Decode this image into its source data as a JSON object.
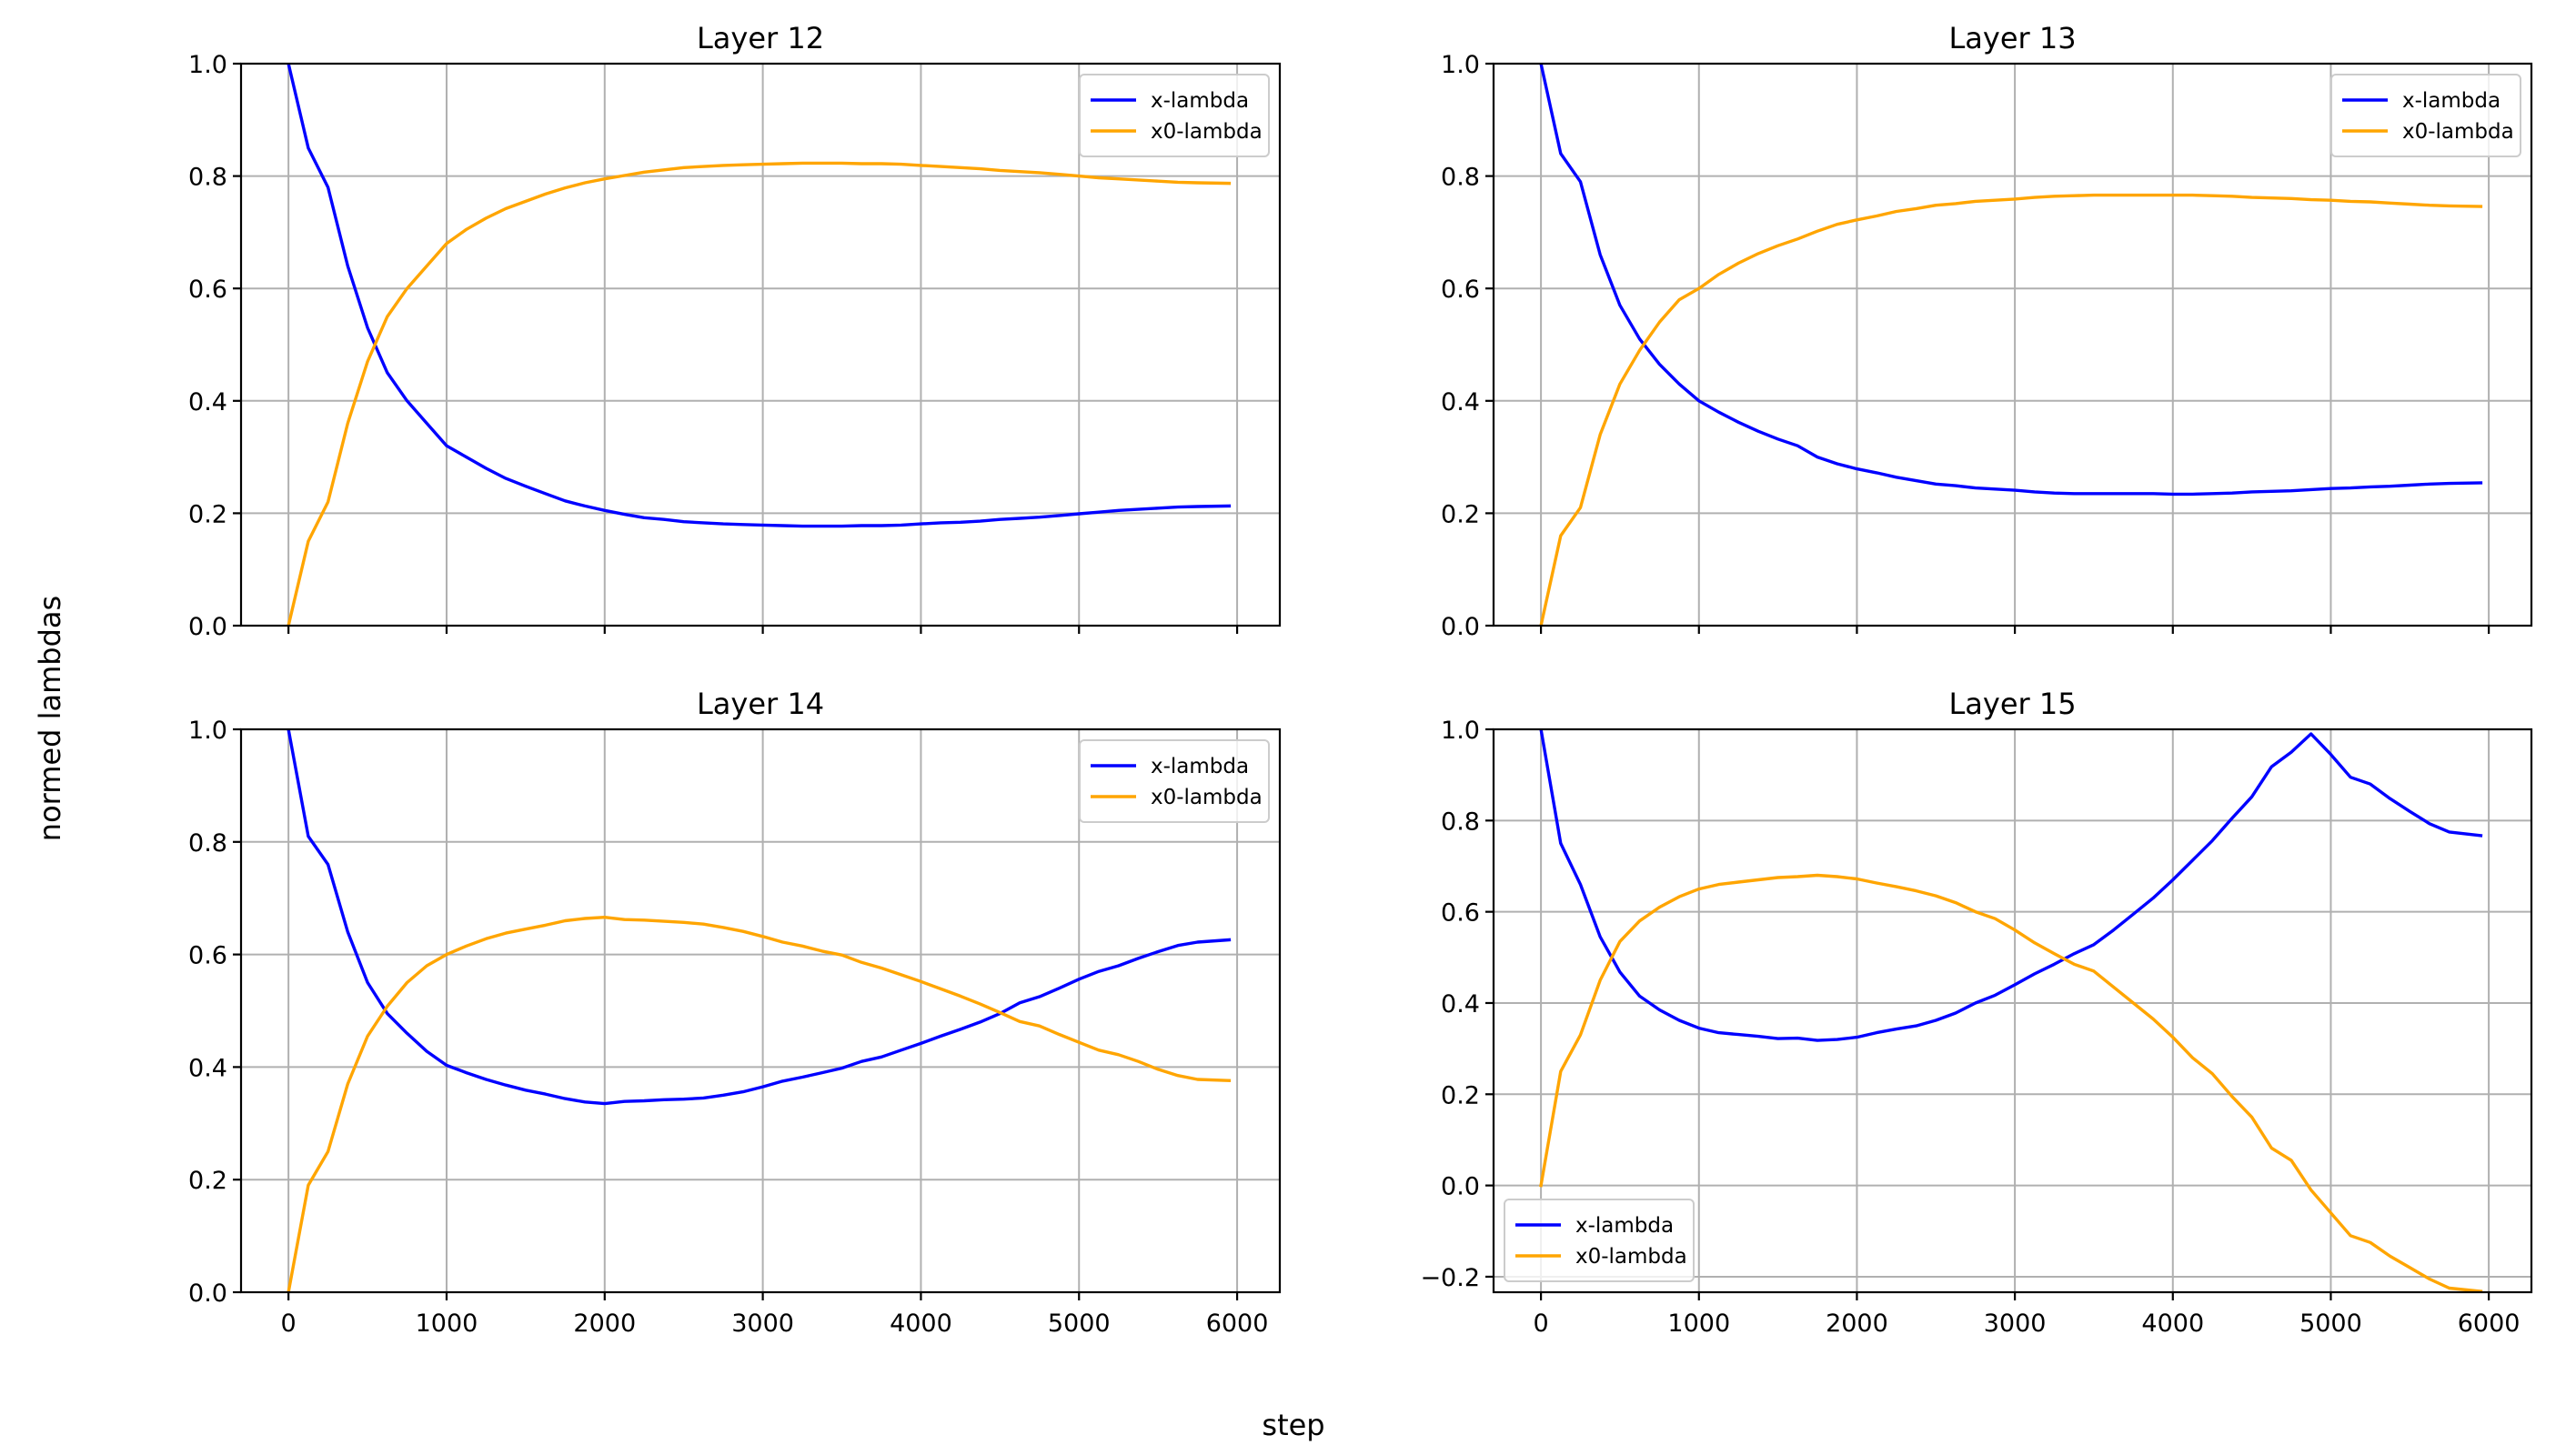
{
  "figure": {
    "xlabel": "step",
    "ylabel": "normed lambdas"
  },
  "colors": {
    "x_lambda": "#0000ff",
    "x0_lambda": "#ffa500",
    "grid": "#b0b0b0"
  },
  "chart_data": [
    {
      "type": "line",
      "title": "Layer 12",
      "xlabel": "",
      "ylabel": "",
      "xlim": [
        -300,
        6270
      ],
      "ylim": [
        0.0,
        1.0
      ],
      "xticks": [
        0,
        1000,
        2000,
        3000,
        4000,
        5000,
        6000
      ],
      "xtick_labels": [],
      "yticks": [
        0.0,
        0.2,
        0.4,
        0.6,
        0.8,
        1.0
      ],
      "ytick_labels": [
        "0.0",
        "0.2",
        "0.4",
        "0.6",
        "0.8",
        "1.0"
      ],
      "grid": true,
      "legend": "top-right",
      "x": [
        0,
        125,
        250,
        375,
        500,
        625,
        750,
        875,
        1000,
        1125,
        1250,
        1375,
        1500,
        1625,
        1750,
        1875,
        2000,
        2125,
        2250,
        2375,
        2500,
        2625,
        2750,
        2875,
        3000,
        3125,
        3250,
        3375,
        3500,
        3625,
        3750,
        3875,
        4000,
        4125,
        4250,
        4375,
        4500,
        4625,
        4750,
        4875,
        5000,
        5125,
        5250,
        5375,
        5500,
        5625,
        5750,
        5950
      ],
      "series": [
        {
          "name": "x-lambda",
          "values": [
            1.0,
            0.85,
            0.78,
            0.64,
            0.53,
            0.45,
            0.4,
            0.36,
            0.32,
            0.3,
            0.28,
            0.262,
            0.248,
            0.235,
            0.222,
            0.213,
            0.205,
            0.198,
            0.192,
            0.189,
            0.185,
            0.183,
            0.181,
            0.18,
            0.179,
            0.178,
            0.177,
            0.177,
            0.177,
            0.178,
            0.178,
            0.179,
            0.181,
            0.183,
            0.184,
            0.186,
            0.189,
            0.191,
            0.193,
            0.196,
            0.199,
            0.202,
            0.205,
            0.207,
            0.209,
            0.211,
            0.212,
            0.213
          ]
        },
        {
          "name": "x0-lambda",
          "values": [
            0.0,
            0.15,
            0.22,
            0.36,
            0.47,
            0.55,
            0.6,
            0.64,
            0.68,
            0.705,
            0.725,
            0.742,
            0.755,
            0.768,
            0.779,
            0.788,
            0.795,
            0.801,
            0.807,
            0.811,
            0.815,
            0.817,
            0.819,
            0.82,
            0.821,
            0.822,
            0.823,
            0.823,
            0.823,
            0.822,
            0.822,
            0.821,
            0.819,
            0.817,
            0.815,
            0.813,
            0.81,
            0.808,
            0.806,
            0.803,
            0.8,
            0.797,
            0.795,
            0.793,
            0.791,
            0.789,
            0.788,
            0.787
          ]
        }
      ]
    },
    {
      "type": "line",
      "title": "Layer 13",
      "xlabel": "",
      "ylabel": "",
      "xlim": [
        -300,
        6270
      ],
      "ylim": [
        0.0,
        1.0
      ],
      "xticks": [
        0,
        1000,
        2000,
        3000,
        4000,
        5000,
        6000
      ],
      "xtick_labels": [],
      "yticks": [
        0.0,
        0.2,
        0.4,
        0.6,
        0.8,
        1.0
      ],
      "ytick_labels": [
        "0.0",
        "0.2",
        "0.4",
        "0.6",
        "0.8",
        "1.0"
      ],
      "grid": true,
      "legend": "top-right",
      "x": [
        0,
        125,
        250,
        375,
        500,
        625,
        750,
        875,
        1000,
        1125,
        1250,
        1375,
        1500,
        1625,
        1750,
        1875,
        2000,
        2125,
        2250,
        2375,
        2500,
        2625,
        2750,
        2875,
        3000,
        3125,
        3250,
        3375,
        3500,
        3625,
        3750,
        3875,
        4000,
        4125,
        4250,
        4375,
        4500,
        4625,
        4750,
        4875,
        5000,
        5125,
        5250,
        5375,
        5500,
        5625,
        5750,
        5950
      ],
      "series": [
        {
          "name": "x-lambda",
          "values": [
            1.0,
            0.84,
            0.79,
            0.66,
            0.57,
            0.51,
            0.465,
            0.43,
            0.4,
            0.38,
            0.362,
            0.346,
            0.332,
            0.32,
            0.3,
            0.288,
            0.279,
            0.272,
            0.264,
            0.258,
            0.252,
            0.249,
            0.245,
            0.243,
            0.241,
            0.238,
            0.236,
            0.235,
            0.235,
            0.235,
            0.235,
            0.235,
            0.234,
            0.234,
            0.235,
            0.236,
            0.238,
            0.239,
            0.24,
            0.242,
            0.244,
            0.245,
            0.247,
            0.248,
            0.25,
            0.252,
            0.253,
            0.254
          ]
        },
        {
          "name": "x0-lambda",
          "values": [
            0.0,
            0.16,
            0.21,
            0.34,
            0.43,
            0.49,
            0.54,
            0.58,
            0.6,
            0.625,
            0.645,
            0.662,
            0.676,
            0.688,
            0.702,
            0.714,
            0.722,
            0.729,
            0.737,
            0.742,
            0.748,
            0.751,
            0.755,
            0.757,
            0.759,
            0.762,
            0.764,
            0.765,
            0.766,
            0.766,
            0.766,
            0.766,
            0.766,
            0.766,
            0.765,
            0.764,
            0.762,
            0.761,
            0.76,
            0.758,
            0.757,
            0.755,
            0.754,
            0.752,
            0.75,
            0.748,
            0.747,
            0.746
          ]
        }
      ]
    },
    {
      "type": "line",
      "title": "Layer 14",
      "xlabel": "",
      "ylabel": "",
      "xlim": [
        -300,
        6270
      ],
      "ylim": [
        0.0,
        1.0
      ],
      "xticks": [
        0,
        1000,
        2000,
        3000,
        4000,
        5000,
        6000
      ],
      "xtick_labels": [
        "0",
        "1000",
        "2000",
        "3000",
        "4000",
        "5000",
        "6000"
      ],
      "yticks": [
        0.0,
        0.2,
        0.4,
        0.6,
        0.8,
        1.0
      ],
      "ytick_labels": [
        "0.0",
        "0.2",
        "0.4",
        "0.6",
        "0.8",
        "1.0"
      ],
      "grid": true,
      "legend": "top-right",
      "x": [
        0,
        125,
        250,
        375,
        500,
        625,
        750,
        875,
        1000,
        1125,
        1250,
        1375,
        1500,
        1625,
        1750,
        1875,
        2000,
        2125,
        2250,
        2375,
        2500,
        2625,
        2750,
        2875,
        3000,
        3125,
        3250,
        3375,
        3500,
        3625,
        3750,
        3875,
        4000,
        4125,
        4250,
        4375,
        4500,
        4625,
        4750,
        4875,
        5000,
        5125,
        5250,
        5375,
        5500,
        5625,
        5750,
        5950
      ],
      "series": [
        {
          "name": "x-lambda",
          "values": [
            1.0,
            0.81,
            0.76,
            0.64,
            0.55,
            0.495,
            0.46,
            0.428,
            0.403,
            0.39,
            0.378,
            0.368,
            0.359,
            0.352,
            0.344,
            0.338,
            0.335,
            0.339,
            0.34,
            0.342,
            0.343,
            0.345,
            0.35,
            0.356,
            0.365,
            0.375,
            0.382,
            0.39,
            0.398,
            0.41,
            0.418,
            0.43,
            0.442,
            0.455,
            0.467,
            0.48,
            0.495,
            0.514,
            0.525,
            0.54,
            0.556,
            0.57,
            0.58,
            0.593,
            0.605,
            0.616,
            0.622,
            0.626
          ]
        },
        {
          "name": "x0-lambda",
          "values": [
            0.0,
            0.19,
            0.25,
            0.37,
            0.455,
            0.508,
            0.55,
            0.58,
            0.6,
            0.615,
            0.628,
            0.638,
            0.645,
            0.652,
            0.66,
            0.664,
            0.666,
            0.662,
            0.661,
            0.659,
            0.657,
            0.654,
            0.648,
            0.641,
            0.632,
            0.622,
            0.615,
            0.606,
            0.599,
            0.586,
            0.576,
            0.564,
            0.552,
            0.539,
            0.526,
            0.512,
            0.497,
            0.481,
            0.473,
            0.458,
            0.444,
            0.43,
            0.422,
            0.41,
            0.396,
            0.385,
            0.378,
            0.376
          ]
        }
      ]
    },
    {
      "type": "line",
      "title": "Layer 15",
      "xlabel": "",
      "ylabel": "",
      "xlim": [
        -300,
        6270
      ],
      "ylim": [
        -0.234,
        1.0
      ],
      "xticks": [
        0,
        1000,
        2000,
        3000,
        4000,
        5000,
        6000
      ],
      "xtick_labels": [
        "0",
        "1000",
        "2000",
        "3000",
        "4000",
        "5000",
        "6000"
      ],
      "yticks": [
        -0.2,
        0.0,
        0.2,
        0.4,
        0.6,
        0.8,
        1.0
      ],
      "ytick_labels": [
        "−0.2",
        "0.0",
        "0.2",
        "0.4",
        "0.6",
        "0.8",
        "1.0"
      ],
      "grid": true,
      "legend": "bottom-left",
      "x": [
        0,
        125,
        250,
        375,
        500,
        625,
        750,
        875,
        1000,
        1125,
        1250,
        1375,
        1500,
        1625,
        1750,
        1875,
        2000,
        2125,
        2250,
        2375,
        2500,
        2625,
        2750,
        2875,
        3000,
        3125,
        3250,
        3375,
        3500,
        3625,
        3750,
        3875,
        4000,
        4125,
        4250,
        4375,
        4500,
        4625,
        4750,
        4875,
        5000,
        5125,
        5250,
        5375,
        5500,
        5625,
        5750,
        5950
      ],
      "series": [
        {
          "name": "x-lambda",
          "values": [
            1.0,
            0.75,
            0.66,
            0.545,
            0.468,
            0.415,
            0.385,
            0.362,
            0.345,
            0.335,
            0.331,
            0.327,
            0.322,
            0.323,
            0.318,
            0.32,
            0.325,
            0.335,
            0.343,
            0.35,
            0.362,
            0.378,
            0.4,
            0.417,
            0.44,
            0.464,
            0.485,
            0.508,
            0.528,
            0.56,
            0.595,
            0.63,
            0.67,
            0.713,
            0.756,
            0.805,
            0.852,
            0.918,
            0.95,
            0.99,
            0.945,
            0.895,
            0.88,
            0.848,
            0.82,
            0.793,
            0.775,
            0.767
          ]
        },
        {
          "name": "x0-lambda",
          "values": [
            0.0,
            0.25,
            0.33,
            0.45,
            0.535,
            0.58,
            0.61,
            0.633,
            0.65,
            0.66,
            0.665,
            0.67,
            0.675,
            0.677,
            0.68,
            0.677,
            0.672,
            0.663,
            0.655,
            0.646,
            0.635,
            0.62,
            0.6,
            0.585,
            0.56,
            0.532,
            0.508,
            0.485,
            0.47,
            0.435,
            0.4,
            0.365,
            0.325,
            0.28,
            0.245,
            0.195,
            0.15,
            0.082,
            0.055,
            -0.01,
            -0.06,
            -0.11,
            -0.125,
            -0.155,
            -0.18,
            -0.205,
            -0.225,
            -0.232
          ]
        }
      ]
    }
  ]
}
